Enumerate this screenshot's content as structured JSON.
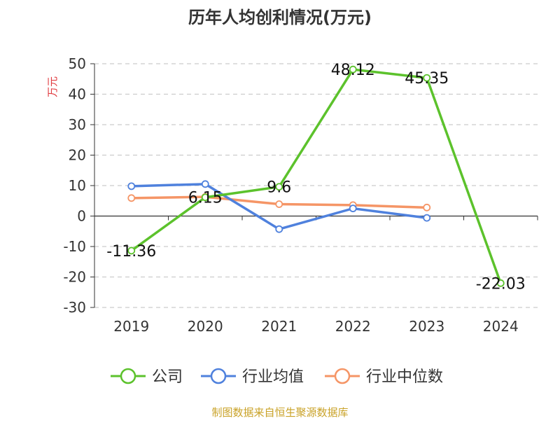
{
  "chart_data": {
    "type": "line",
    "title": "历年人均创利情况(万元)",
    "ylabel": "万元",
    "xlabel": "",
    "categories": [
      "2019",
      "2020",
      "2021",
      "2022",
      "2023",
      "2024"
    ],
    "ylim": [
      -30,
      50
    ],
    "yticks": [
      50,
      40,
      30,
      20,
      10,
      0,
      -10,
      -20,
      -30
    ],
    "grid": true,
    "legend_position": "bottom",
    "series": [
      {
        "name": "公司",
        "color": "#5cc22c",
        "values": [
          -11.36,
          6.15,
          9.6,
          48.12,
          45.35,
          -22.03
        ],
        "labels": [
          "-11.36",
          "6.15",
          "9.6",
          "48.12",
          "45.35",
          "-22.03"
        ]
      },
      {
        "name": "行业均值",
        "color": "#4f81dd",
        "values": [
          9.8,
          10.5,
          -4.3,
          2.5,
          -0.6,
          null
        ]
      },
      {
        "name": "行业中位数",
        "color": "#f59566",
        "values": [
          5.9,
          6.3,
          3.9,
          3.6,
          2.8,
          null
        ]
      }
    ]
  },
  "source": "制图数据来自恒生聚源数据库"
}
